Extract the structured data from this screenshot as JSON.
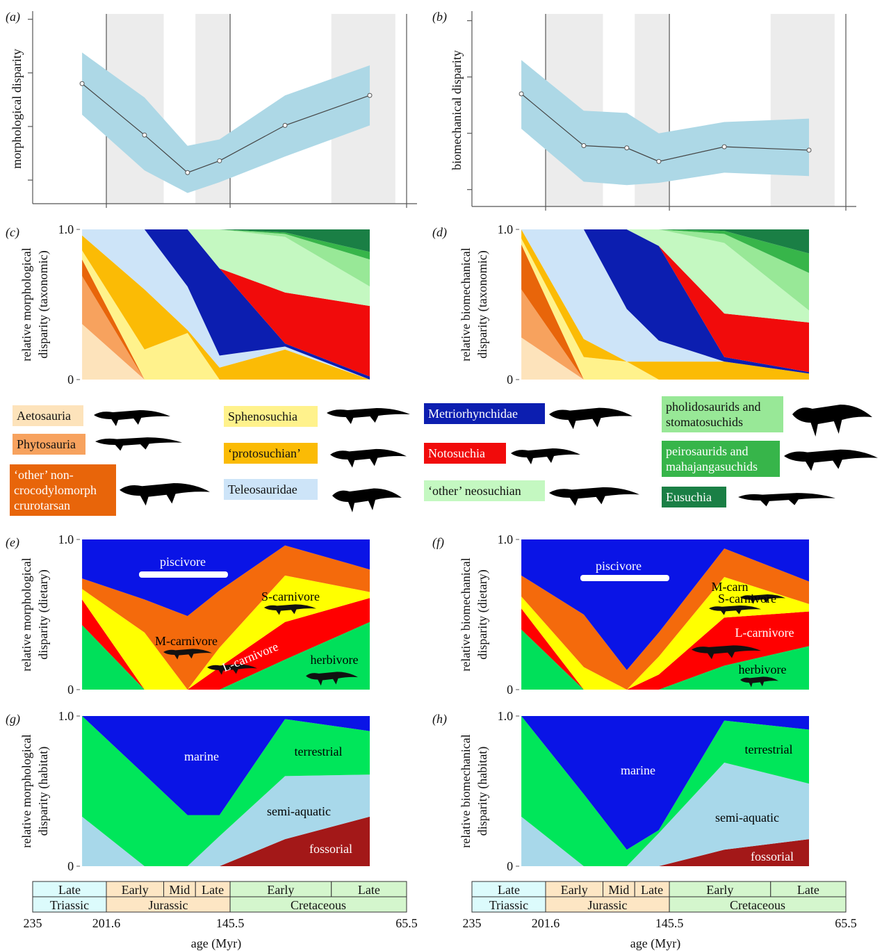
{
  "chart_data": [
    {
      "type": "line",
      "panel_label": "(a)",
      "ylabel": "morphological disparity",
      "x": [
        212.6,
        184.3,
        164.8,
        150.3,
        120.6,
        82.2
      ],
      "xlim": [
        235,
        65.5
      ],
      "ylim": [
        0.28,
        2.05
      ],
      "yticks": [
        0.5,
        1,
        1.5,
        2
      ],
      "boundaries": [
        201.6,
        145.5,
        65.5
      ],
      "shaded": [
        [
          201.6,
          175.6
        ],
        [
          161.2,
          145.5
        ],
        [
          99.6,
          70.6
        ]
      ],
      "series": [
        {
          "values": [
            1.4,
            0.92,
            0.57,
            0.68,
            1.01,
            1.29
          ],
          "upper": [
            1.69,
            1.27,
            0.82,
            0.88,
            1.29,
            1.57
          ],
          "lower": [
            1.11,
            0.59,
            0.38,
            0.48,
            0.72,
            1.01
          ],
          "color": "#444444",
          "band_color": "#add8e6"
        }
      ]
    },
    {
      "type": "line",
      "panel_label": "(b)",
      "ylabel": "biomechanical disparity",
      "x": [
        212.6,
        184.3,
        164.8,
        150.3,
        120.6,
        82.2
      ],
      "xlim": [
        235,
        65.5
      ],
      "ylim": [
        0.35,
        2.06
      ],
      "yticks": [
        0.5,
        1,
        1.5,
        2
      ],
      "boundaries": [
        201.6,
        145.5,
        65.5
      ],
      "shaded": [
        [
          201.6,
          175.6
        ],
        [
          161.2,
          145.5
        ],
        [
          99.6,
          70.6
        ]
      ],
      "series": [
        {
          "values": [
            1.35,
            0.89,
            0.87,
            0.75,
            0.88,
            0.85
          ],
          "upper": [
            1.65,
            1.2,
            1.18,
            1.0,
            1.1,
            1.13
          ],
          "lower": [
            1.04,
            0.57,
            0.54,
            0.56,
            0.65,
            0.62
          ],
          "color": "#444444",
          "band_color": "#add8e6"
        }
      ]
    },
    {
      "type": "stacked_area",
      "panel_label": "(c)",
      "ylabel": [
        "relative morphological",
        "disparity (taxonomic)"
      ],
      "x": [
        212.6,
        184.3,
        164.8,
        150.3,
        120.6,
        82.2
      ],
      "xlim": [
        235,
        65.5
      ],
      "ylim": [
        0,
        1
      ],
      "yticks": [
        {
          "value": 1,
          "label": "1.0"
        },
        0
      ],
      "legend": "below",
      "series": [
        {
          "name": "Aetosauria",
          "color": "#fde3bb",
          "values": [
            0.37,
            0,
            0,
            0,
            0,
            0
          ]
        },
        {
          "name": "Phytosauria",
          "color": "#f7a25e",
          "values": [
            0.32,
            0,
            0,
            0,
            0,
            0
          ]
        },
        {
          "name": "‘other’ non-crocodylomorph crurotarsan",
          "color": "#e8650a",
          "values": [
            0.11,
            0,
            0,
            0,
            0,
            0
          ]
        },
        {
          "name": "Sphenosuchia",
          "color": "#fff28c",
          "values": [
            0.06,
            0.2,
            0.31,
            0,
            0,
            0
          ]
        },
        {
          "name": "‘protosuchian’",
          "color": "#fbbb05",
          "values": [
            0.1,
            0.4,
            0.02,
            0.08,
            0.2,
            0
          ]
        },
        {
          "name": "Teleosauridae",
          "color": "#cde4f8",
          "values": [
            0.04,
            0.4,
            0.29,
            0.08,
            0.02,
            0
          ]
        },
        {
          "name": "Metriorhynchidae",
          "color": "#0c1eb0",
          "values": [
            0,
            0,
            0.38,
            0.58,
            0.02,
            0.02
          ]
        },
        {
          "name": "Notosuchia",
          "color": "#f10b0b",
          "values": [
            0,
            0,
            0,
            0,
            0.34,
            0.47
          ]
        },
        {
          "name": "‘other’ neosuchian",
          "color": "#c4f8c1",
          "values": [
            0,
            0,
            0,
            0.26,
            0.37,
            0.13
          ]
        },
        {
          "name": "pholidosaurids and stomatosuchids",
          "color": "#98e897",
          "values": [
            0,
            0,
            0,
            0,
            0.02,
            0.18
          ]
        },
        {
          "name": "peirosaurids and mahajangasuchids",
          "color": "#37b54a",
          "values": [
            0,
            0,
            0,
            0,
            0.01,
            0.05
          ]
        },
        {
          "name": "Eusuchia",
          "color": "#1a7f45",
          "values": [
            0,
            0,
            0,
            0,
            0.02,
            0.15
          ]
        }
      ]
    },
    {
      "type": "stacked_area",
      "panel_label": "(d)",
      "ylabel": [
        "relative biomechanical",
        "disparity (taxonomic)"
      ],
      "x": [
        212.6,
        184.3,
        164.8,
        150.3,
        120.6,
        82.2
      ],
      "xlim": [
        235,
        65.5
      ],
      "ylim": [
        0,
        1
      ],
      "yticks": [
        {
          "value": 1,
          "label": "1.0"
        },
        0
      ],
      "series": [
        {
          "color": "#fde3bb",
          "values": [
            0.28,
            0,
            0,
            0,
            0,
            0
          ]
        },
        {
          "color": "#f7a25e",
          "values": [
            0.32,
            0,
            0,
            0,
            0,
            0
          ]
        },
        {
          "color": "#e8650a",
          "values": [
            0.3,
            0,
            0,
            0,
            0,
            0
          ]
        },
        {
          "color": "#fff28c",
          "values": [
            0.04,
            0.15,
            0.12,
            0,
            0,
            0
          ]
        },
        {
          "color": "#fbbb05",
          "values": [
            0.06,
            0.12,
            0,
            0.12,
            0.12,
            0.04
          ]
        },
        {
          "color": "#cde4f8",
          "values": [
            0,
            0.73,
            0.35,
            0.14,
            0,
            0
          ]
        },
        {
          "color": "#0c1eb0",
          "values": [
            0,
            0,
            0.53,
            0.63,
            0.03,
            0.01
          ]
        },
        {
          "color": "#f10b0b",
          "values": [
            0,
            0,
            0,
            0,
            0.29,
            0.33
          ]
        },
        {
          "color": "#c4f8c1",
          "values": [
            0,
            0,
            0,
            0.11,
            0.47,
            0.08
          ]
        },
        {
          "color": "#98e897",
          "values": [
            0,
            0,
            0,
            0,
            0.06,
            0.25
          ]
        },
        {
          "color": "#37b54a",
          "values": [
            0,
            0,
            0,
            0,
            0.02,
            0.13
          ]
        },
        {
          "color": "#1a7f45",
          "values": [
            0,
            0,
            0,
            0,
            0.01,
            0.16
          ]
        }
      ]
    },
    {
      "type": "stacked_area",
      "panel_label": "(e)",
      "ylabel": [
        "relative morphological",
        "disparity (dietary)"
      ],
      "x": [
        212.6,
        184.3,
        164.8,
        150.3,
        120.6,
        82.2
      ],
      "xlim": [
        235,
        65.5
      ],
      "ylim": [
        0,
        1
      ],
      "yticks": [
        {
          "value": 1,
          "label": "1.0"
        },
        0
      ],
      "series_labels": "inline",
      "series": [
        {
          "name": "herbivore",
          "color": "#00e05a",
          "values": [
            0.43,
            0,
            0,
            0,
            0.2,
            0.45
          ]
        },
        {
          "name": "L-carnivore",
          "color": "#ff0000",
          "values": [
            0.17,
            0,
            0,
            0.15,
            0.25,
            0.16
          ]
        },
        {
          "name": "S-carnivore",
          "color": "#ffff00",
          "values": [
            0.07,
            0.38,
            0,
            0.13,
            0.31,
            0.04
          ]
        },
        {
          "name": "M-carnivore",
          "color": "#f46a0c",
          "values": [
            0.07,
            0.22,
            0.49,
            0.38,
            0.2,
            0.15
          ]
        },
        {
          "name": "piscivore",
          "color": "#0a14e6",
          "values": [
            0.26,
            0.4,
            0.51,
            0.34,
            0.04,
            0.2
          ]
        }
      ]
    },
    {
      "type": "stacked_area",
      "panel_label": "(f)",
      "ylabel": [
        "relative biomechanical",
        "disparity (dietary)"
      ],
      "x": [
        212.6,
        184.3,
        164.8,
        150.3,
        120.6,
        82.2
      ],
      "xlim": [
        235,
        65.5
      ],
      "ylim": [
        0,
        1
      ],
      "yticks": [
        {
          "value": 1,
          "label": "1.0"
        },
        0
      ],
      "series_labels": "inline",
      "series": [
        {
          "name": "herbivore",
          "color": "#00e05a",
          "values": [
            0.4,
            0,
            0,
            0,
            0.16,
            0.29
          ]
        },
        {
          "name": "L-carnivore",
          "color": "#ff0000",
          "values": [
            0.14,
            0,
            0,
            0.1,
            0.32,
            0.23
          ]
        },
        {
          "name": "S-carnivore",
          "color": "#ffff00",
          "values": [
            0.08,
            0.15,
            0,
            0.12,
            0.27,
            0.05
          ]
        },
        {
          "name": "M-carn",
          "color": "#f46a0c",
          "values": [
            0.14,
            0.35,
            0.13,
            0.16,
            0.19,
            0.15
          ]
        },
        {
          "name": "piscivore",
          "color": "#0a14e6",
          "values": [
            0.24,
            0.5,
            0.87,
            0.62,
            0.06,
            0.28
          ]
        }
      ]
    },
    {
      "type": "stacked_area",
      "panel_label": "(g)",
      "ylabel": [
        "relative morphological",
        "disparity (habitat)"
      ],
      "x": [
        212.6,
        184.3,
        164.8,
        150.3,
        120.6,
        82.2
      ],
      "xlim": [
        235,
        65.5
      ],
      "ylim": [
        0,
        1
      ],
      "yticks": [
        {
          "value": 1,
          "label": "1.0"
        },
        0
      ],
      "series_labels": "inline",
      "series": [
        {
          "name": "fossorial",
          "color": "#a31818",
          "values": [
            0,
            0,
            0,
            0,
            0.18,
            0.33
          ]
        },
        {
          "name": "semi-aquatic",
          "color": "#a8d8ea",
          "values": [
            0.33,
            0,
            0,
            0.2,
            0.42,
            0.28
          ]
        },
        {
          "name": "terrestrial",
          "color": "#00e65a",
          "values": [
            0.67,
            0.61,
            0.34,
            0.14,
            0.38,
            0.29
          ]
        },
        {
          "name": "marine",
          "color": "#0a14e6",
          "values": [
            0,
            0.39,
            0.66,
            0.66,
            0.02,
            0.1
          ]
        }
      ],
      "xticks": [
        235,
        201.6,
        145.5,
        65.5
      ],
      "xlabel": "age (Myr)",
      "timescale": {
        "epochs": [
          {
            "label": "Late",
            "start": 235,
            "end": 201.6,
            "color": "#dcfbfc"
          },
          {
            "label": "Early",
            "start": 201.6,
            "end": 175.6,
            "color": "#fde6c4"
          },
          {
            "label": "Mid",
            "start": 175.6,
            "end": 161.2,
            "color": "#fde6c4"
          },
          {
            "label": "Late",
            "start": 161.2,
            "end": 145.5,
            "color": "#fde6c4"
          },
          {
            "label": "Early",
            "start": 145.5,
            "end": 99.6,
            "color": "#d4f6cd"
          },
          {
            "label": "Late",
            "start": 99.6,
            "end": 65.5,
            "color": "#d4f6cd"
          }
        ],
        "periods": [
          {
            "label": "Triassic",
            "start": 235,
            "end": 201.6,
            "color": "#dcfbfc"
          },
          {
            "label": "Jurassic",
            "start": 201.6,
            "end": 145.5,
            "color": "#fde6c4"
          },
          {
            "label": "Cretaceous",
            "start": 145.5,
            "end": 65.5,
            "color": "#d4f6cd"
          }
        ]
      }
    },
    {
      "type": "stacked_area",
      "panel_label": "(h)",
      "ylabel": [
        "relative biomechanical",
        "disparity (habitat)"
      ],
      "x": [
        212.6,
        184.3,
        164.8,
        150.3,
        120.6,
        82.2
      ],
      "xlim": [
        235,
        65.5
      ],
      "ylim": [
        0,
        1
      ],
      "yticks": [
        {
          "value": 1,
          "label": "1.0"
        },
        0
      ],
      "series_labels": "inline",
      "series": [
        {
          "name": "fossorial",
          "color": "#a31818",
          "values": [
            0,
            0,
            0,
            0,
            0.11,
            0.18
          ]
        },
        {
          "name": "semi-aquatic",
          "color": "#a8d8ea",
          "values": [
            0.33,
            0,
            0,
            0.22,
            0.58,
            0.37
          ]
        },
        {
          "name": "terrestrial",
          "color": "#00e65a",
          "values": [
            0.67,
            0.48,
            0.11,
            0.02,
            0.28,
            0.36
          ]
        },
        {
          "name": "marine",
          "color": "#0a14e6",
          "values": [
            0,
            0.52,
            0.89,
            0.76,
            0.03,
            0.09
          ]
        }
      ],
      "xticks": [
        235,
        201.6,
        145.5,
        65.5
      ],
      "xlabel": "age (Myr)",
      "timescale": {
        "epochs": [
          {
            "label": "Late",
            "start": 235,
            "end": 201.6,
            "color": "#dcfbfc"
          },
          {
            "label": "Early",
            "start": 201.6,
            "end": 175.6,
            "color": "#fde6c4"
          },
          {
            "label": "Mid",
            "start": 175.6,
            "end": 161.2,
            "color": "#fde6c4"
          },
          {
            "label": "Late",
            "start": 161.2,
            "end": 145.5,
            "color": "#fde6c4"
          },
          {
            "label": "Early",
            "start": 145.5,
            "end": 99.6,
            "color": "#d4f6cd"
          },
          {
            "label": "Late",
            "start": 99.6,
            "end": 65.5,
            "color": "#d4f6cd"
          }
        ],
        "periods": [
          {
            "label": "Triassic",
            "start": 235,
            "end": 201.6,
            "color": "#dcfbfc"
          },
          {
            "label": "Jurassic",
            "start": 201.6,
            "end": 145.5,
            "color": "#fde6c4"
          },
          {
            "label": "Cretaceous",
            "start": 145.5,
            "end": 65.5,
            "color": "#d4f6cd"
          }
        ]
      }
    }
  ]
}
